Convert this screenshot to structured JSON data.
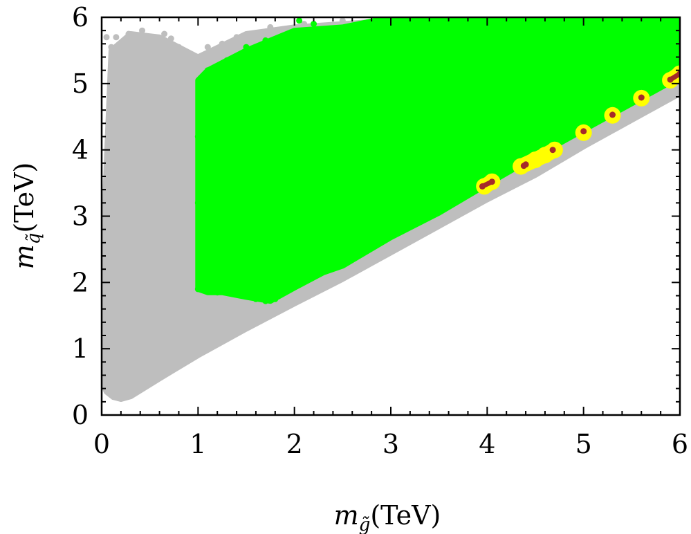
{
  "chart_data": {
    "type": "scatter",
    "title": "",
    "xlabel": {
      "symbol": "m",
      "sub": "g̃",
      "unit": "(TeV)"
    },
    "ylabel": {
      "symbol": "m",
      "sub": "q̃",
      "unit": "(TeV)"
    },
    "xlim": [
      0,
      6
    ],
    "ylim": [
      0,
      6
    ],
    "xticks": [
      "0",
      "1",
      "2",
      "3",
      "4",
      "5",
      "6"
    ],
    "yticks": [
      "0",
      "1",
      "2",
      "3",
      "4",
      "5",
      "6"
    ],
    "grid": false,
    "legend": "none",
    "series": [
      {
        "color": "#bebebe",
        "style": "region",
        "boundary": [
          [
            0.02,
            0.45
          ],
          [
            0.05,
            0.35
          ],
          [
            0.12,
            0.27
          ],
          [
            0.2,
            0.24
          ],
          [
            0.3,
            0.28
          ],
          [
            0.6,
            0.55
          ],
          [
            1.0,
            0.9
          ],
          [
            1.5,
            1.3
          ],
          [
            2.0,
            1.68
          ],
          [
            2.5,
            2.05
          ],
          [
            3.0,
            2.45
          ],
          [
            3.5,
            2.85
          ],
          [
            4.0,
            3.25
          ],
          [
            4.5,
            3.62
          ],
          [
            5.0,
            4.05
          ],
          [
            5.5,
            4.45
          ],
          [
            6.0,
            4.85
          ],
          [
            6.0,
            6.0
          ],
          [
            3.6,
            6.0
          ],
          [
            3.0,
            5.95
          ],
          [
            2.5,
            5.9
          ],
          [
            2.0,
            5.85
          ],
          [
            1.5,
            5.75
          ],
          [
            1.0,
            5.4
          ],
          [
            0.6,
            5.7
          ],
          [
            0.3,
            5.75
          ],
          [
            0.1,
            5.5
          ],
          [
            0.05,
            3.8
          ],
          [
            0.02,
            2.6
          ]
        ],
        "scatter_points": [
          [
            0.05,
            5.7
          ],
          [
            0.1,
            5.55
          ],
          [
            0.15,
            5.7
          ],
          [
            0.22,
            5.6
          ],
          [
            0.28,
            5.75
          ],
          [
            0.35,
            5.65
          ],
          [
            0.42,
            5.8
          ],
          [
            0.48,
            5.7
          ],
          [
            0.55,
            5.55
          ],
          [
            0.6,
            5.62
          ],
          [
            0.65,
            5.75
          ],
          [
            0.72,
            5.68
          ],
          [
            0.8,
            5.55
          ],
          [
            0.85,
            5.3
          ],
          [
            0.9,
            5.1
          ],
          [
            0.95,
            5.0
          ],
          [
            1.1,
            5.55
          ],
          [
            1.25,
            5.6
          ],
          [
            1.4,
            5.7
          ],
          [
            1.55,
            5.65
          ],
          [
            1.75,
            5.85
          ],
          [
            2.1,
            5.9
          ],
          [
            2.3,
            5.8
          ],
          [
            2.5,
            5.95
          ],
          [
            2.7,
            5.88
          ],
          [
            0.1,
            2.6
          ],
          [
            0.07,
            3.4
          ],
          [
            0.09,
            4.2
          ],
          [
            0.12,
            4.95
          ],
          [
            0.2,
            5.3
          ],
          [
            0.3,
            4.9
          ],
          [
            0.45,
            5.1
          ],
          [
            0.55,
            4.8
          ],
          [
            0.7,
            4.7
          ],
          [
            0.04,
            1.8
          ],
          [
            0.06,
            1.2
          ],
          [
            0.08,
            0.7
          ]
        ]
      },
      {
        "color": "#00ff00",
        "style": "region",
        "boundary": [
          [
            1.0,
            1.9
          ],
          [
            1.1,
            1.85
          ],
          [
            1.25,
            1.85
          ],
          [
            1.5,
            1.78
          ],
          [
            1.75,
            1.72
          ],
          [
            2.0,
            1.92
          ],
          [
            2.3,
            2.15
          ],
          [
            2.5,
            2.25
          ],
          [
            3.0,
            2.68
          ],
          [
            3.5,
            3.05
          ],
          [
            4.0,
            3.48
          ],
          [
            4.5,
            3.9
          ],
          [
            5.0,
            4.3
          ],
          [
            5.5,
            4.7
          ],
          [
            6.0,
            5.1
          ],
          [
            6.0,
            6.0
          ],
          [
            3.0,
            6.0
          ],
          [
            2.5,
            5.85
          ],
          [
            2.0,
            5.8
          ],
          [
            1.5,
            5.5
          ],
          [
            1.1,
            5.2
          ],
          [
            1.0,
            5.05
          ]
        ],
        "scatter_points": [
          [
            1.0,
            1.9
          ],
          [
            1.05,
            2.3
          ],
          [
            1.02,
            2.8
          ],
          [
            1.0,
            3.2
          ],
          [
            1.03,
            3.6
          ],
          [
            1.0,
            4.2
          ],
          [
            1.05,
            4.6
          ],
          [
            1.02,
            5.0
          ],
          [
            1.1,
            5.2
          ],
          [
            1.2,
            1.85
          ],
          [
            1.35,
            1.88
          ],
          [
            1.5,
            1.82
          ],
          [
            1.6,
            1.75
          ],
          [
            1.7,
            1.72
          ],
          [
            1.8,
            1.75
          ],
          [
            1.95,
            1.95
          ],
          [
            2.1,
            2.05
          ],
          [
            1.5,
            5.55
          ],
          [
            1.7,
            5.65
          ],
          [
            1.9,
            5.6
          ],
          [
            2.0,
            5.75
          ],
          [
            2.05,
            5.95
          ],
          [
            2.2,
            5.9
          ],
          [
            2.4,
            5.8
          ],
          [
            2.5,
            5.7
          ],
          [
            2.7,
            5.9
          ],
          [
            2.9,
            5.95
          ],
          [
            1.3,
            5.35
          ],
          [
            1.15,
            4.8
          ],
          [
            1.25,
            4.3
          ]
        ]
      },
      {
        "color": "#ffff00",
        "style": "band",
        "points": [
          [
            3.97,
            3.45
          ],
          [
            4.05,
            3.52
          ],
          [
            4.35,
            3.75
          ],
          [
            4.5,
            3.85
          ],
          [
            4.6,
            3.92
          ],
          [
            4.7,
            4.0
          ],
          [
            5.0,
            4.26
          ],
          [
            5.3,
            4.52
          ],
          [
            5.6,
            4.78
          ],
          [
            5.9,
            5.05
          ],
          [
            6.0,
            5.15
          ]
        ]
      },
      {
        "color": "#a52a2a",
        "style": "band",
        "points": [
          [
            3.95,
            3.45
          ],
          [
            4.05,
            3.52
          ],
          [
            4.38,
            3.76
          ],
          [
            4.4,
            3.78
          ],
          [
            4.68,
            4.0
          ],
          [
            5.0,
            4.28
          ],
          [
            5.3,
            4.53
          ],
          [
            5.6,
            4.79
          ],
          [
            5.9,
            5.06
          ],
          [
            6.0,
            5.15
          ]
        ]
      }
    ]
  }
}
